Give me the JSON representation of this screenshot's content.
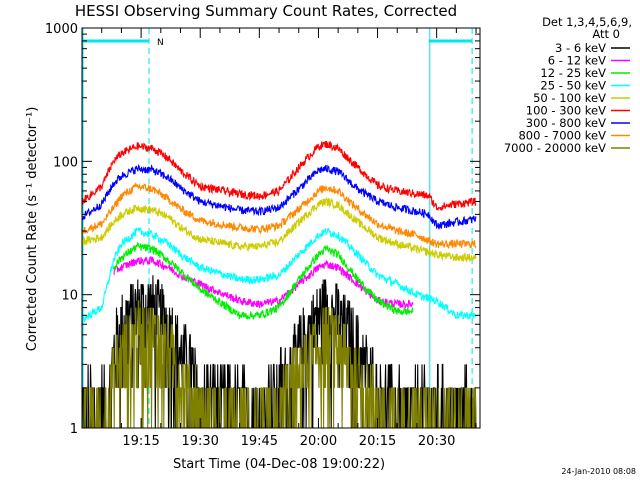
{
  "colors": {
    "background": "#ffffff",
    "axes": "#000000",
    "annotation": "#00e5ee"
  },
  "chart_data": {
    "type": "line",
    "title": "HESSI Observing Summary Count Rates, Corrected",
    "xlabel": "Start Time (04-Dec-08 19:00:22)",
    "ylabel": "Corrected Count Rate (s⁻¹ detector⁻¹)",
    "y_scale": "log",
    "ylim": [
      1,
      1000
    ],
    "xlim_min_after_start": [
      0,
      40
    ],
    "x_ticks": [
      {
        "min": 15,
        "label": "19:15"
      },
      {
        "min": 30,
        "label": "19:30"
      },
      {
        "min": 45,
        "label": "19:45"
      },
      {
        "min": 60,
        "label": "20:00"
      },
      {
        "min": 75,
        "label": "20:15"
      },
      {
        "min": 90,
        "label": "20:30"
      }
    ],
    "y_ticks": [
      {
        "value": 1,
        "label": "1"
      },
      {
        "value": 10,
        "label": "10"
      },
      {
        "value": 100,
        "label": "100"
      },
      {
        "value": 1000,
        "label": "1000"
      }
    ],
    "legend_header": [
      "Det 1,3,4,5,6,9,",
      "Att 0"
    ],
    "legend_placement": "right",
    "grid": false,
    "annotations": {
      "night_marker_label": "N",
      "night_intervals_min": [
        [
          0,
          17
        ],
        [
          88,
          99
        ]
      ]
    },
    "timestamp": "24-Jan-2010 08:08",
    "series": [
      {
        "name": "3 - 6 keV",
        "color": "#000000",
        "mode": "noisy",
        "x_min": [
          0,
          7,
          8,
          10,
          14,
          18,
          22,
          25,
          30,
          40,
          45,
          50,
          55,
          60,
          62,
          65,
          70,
          75,
          80,
          85,
          90,
          95,
          100
        ],
        "y": [
          1.5,
          1.6,
          4,
          6,
          8,
          8,
          6,
          4,
          2,
          1.5,
          1.5,
          2,
          4,
          7,
          8,
          7,
          4,
          2,
          1.5,
          1.5,
          1.5,
          1.5,
          1.5
        ]
      },
      {
        "name": "6 - 12 keV",
        "color": "#ff00ff",
        "mode": "smooth",
        "x_min": [
          8,
          10,
          14,
          18,
          22,
          25,
          30,
          40,
          45,
          50,
          55,
          60,
          62,
          65,
          70,
          75,
          80,
          84
        ],
        "y": [
          15,
          16,
          18,
          18,
          16,
          14,
          12,
          9,
          8.5,
          9,
          12,
          16,
          17,
          16,
          12,
          9,
          8.5,
          8.5
        ]
      },
      {
        "name": "12 - 25 keV",
        "color": "#00ee00",
        "mode": "smooth",
        "x_min": [
          8,
          10,
          14,
          18,
          22,
          25,
          30,
          40,
          45,
          50,
          55,
          60,
          62,
          65,
          70,
          75,
          80,
          84
        ],
        "y": [
          16,
          19,
          23,
          22,
          18,
          15,
          11,
          7,
          7,
          8,
          13,
          20,
          22,
          20,
          13,
          9,
          7.5,
          7.5
        ]
      },
      {
        "name": "25 - 50 keV",
        "color": "#00ffff",
        "mode": "smooth",
        "x_min": [
          0,
          5,
          8,
          10,
          14,
          18,
          22,
          25,
          30,
          40,
          45,
          50,
          55,
          60,
          62,
          65,
          70,
          75,
          80,
          85,
          90,
          95,
          100
        ],
        "y": [
          6.5,
          8,
          18,
          24,
          30,
          28,
          24,
          20,
          16,
          13,
          13,
          14,
          20,
          28,
          30,
          28,
          20,
          14,
          12,
          10,
          9,
          7,
          7
        ]
      },
      {
        "name": "50 - 100 keV",
        "color": "#cccc00",
        "mode": "smooth",
        "x_min": [
          0,
          5,
          8,
          10,
          14,
          18,
          22,
          25,
          30,
          40,
          45,
          50,
          55,
          60,
          62,
          65,
          70,
          75,
          80,
          85,
          90,
          95,
          100
        ],
        "y": [
          25,
          27,
          35,
          40,
          45,
          43,
          38,
          32,
          26,
          23,
          23,
          25,
          35,
          48,
          50,
          47,
          35,
          27,
          24,
          22,
          20,
          19,
          19
        ]
      },
      {
        "name": "100 - 300 keV",
        "color": "#ff0000",
        "mode": "smooth",
        "x_min": [
          0,
          5,
          8,
          10,
          14,
          18,
          22,
          25,
          30,
          40,
          45,
          50,
          55,
          60,
          62,
          65,
          70,
          75,
          80,
          85,
          88,
          90,
          95,
          100
        ],
        "y": [
          50,
          65,
          100,
          115,
          130,
          125,
          105,
          85,
          65,
          57,
          55,
          60,
          90,
          130,
          135,
          125,
          90,
          66,
          60,
          57,
          55,
          45,
          48,
          50
        ]
      },
      {
        "name": "300 - 800 keV",
        "color": "#0000ff",
        "mode": "smooth",
        "x_min": [
          0,
          5,
          8,
          10,
          14,
          18,
          22,
          25,
          30,
          40,
          45,
          50,
          55,
          60,
          62,
          65,
          70,
          75,
          80,
          85,
          88,
          90,
          95,
          100
        ],
        "y": [
          38,
          48,
          68,
          78,
          88,
          86,
          75,
          63,
          50,
          43,
          42,
          45,
          62,
          86,
          88,
          84,
          62,
          50,
          45,
          42,
          40,
          33,
          35,
          37
        ]
      },
      {
        "name": "800 - 7000 keV",
        "color": "#ff8800",
        "mode": "smooth",
        "x_min": [
          0,
          5,
          8,
          10,
          14,
          18,
          22,
          25,
          30,
          40,
          45,
          50,
          55,
          60,
          62,
          65,
          70,
          75,
          80,
          85,
          90,
          95,
          100
        ],
        "y": [
          30,
          34,
          45,
          55,
          65,
          62,
          52,
          44,
          36,
          32,
          31,
          33,
          44,
          60,
          64,
          60,
          44,
          34,
          30,
          28,
          24,
          24,
          24
        ]
      },
      {
        "name": "7000 - 20000 keV",
        "color": "#808000",
        "mode": "noisy",
        "x_min": [
          0,
          7,
          8,
          10,
          14,
          18,
          22,
          25,
          30,
          40,
          45,
          50,
          55,
          60,
          62,
          65,
          70,
          75,
          80,
          85,
          90,
          95,
          100
        ],
        "y": [
          1.3,
          1.4,
          2.5,
          3.5,
          5,
          5,
          4,
          2.5,
          1.4,
          1.2,
          1.2,
          1.4,
          2.5,
          4.5,
          5,
          4.5,
          2.5,
          1.4,
          1.2,
          1.2,
          1.2,
          1.2,
          1.2
        ]
      }
    ]
  }
}
